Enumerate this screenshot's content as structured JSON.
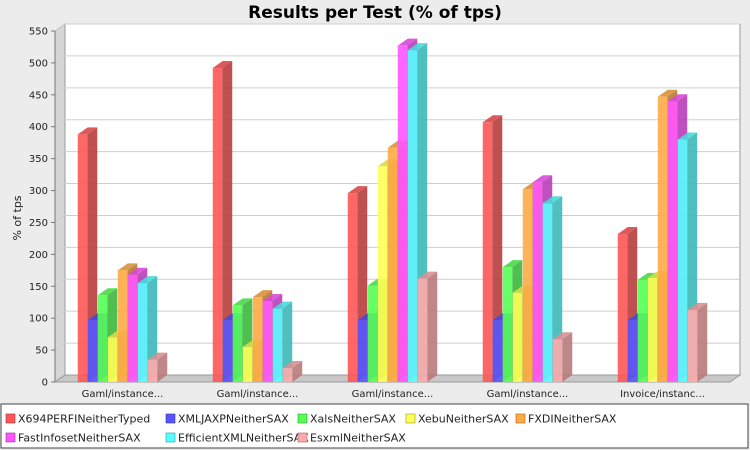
{
  "chart_data": {
    "type": "bar",
    "title": "Results per Test (% of tps)",
    "ylabel": "% of tps",
    "xlabel": "",
    "ylim": [
      0,
      550
    ],
    "yticks": [
      0,
      50,
      100,
      150,
      200,
      250,
      300,
      350,
      400,
      450,
      500,
      550
    ],
    "grid": true,
    "legend_position": "bottom",
    "categories": [
      "Gaml/instance...",
      "Gaml/instance...",
      "Gaml/instance...",
      "Gaml/instance...",
      "Invoice/instanc..."
    ],
    "series": [
      {
        "name": "X694PERFINeitherTyped",
        "color": "#ff5555",
        "values": [
          388,
          492,
          296,
          407,
          232
        ]
      },
      {
        "name": "XMLJAXPNeitherSAX",
        "color": "#5555ff",
        "values": [
          97,
          97,
          97,
          97,
          97
        ]
      },
      {
        "name": "XalsNeitherSAX",
        "color": "#55ff55",
        "values": [
          136,
          120,
          151,
          180,
          160
        ]
      },
      {
        "name": "XebuNeitherSAX",
        "color": "#ffff55",
        "values": [
          70,
          55,
          338,
          140,
          163
        ]
      },
      {
        "name": "FXDINeitherSAX",
        "color": "#ffaa44",
        "values": [
          175,
          133,
          367,
          302,
          447
        ]
      },
      {
        "name": "FastInfosetNeitherSAX",
        "color": "#ff55ff",
        "values": [
          168,
          127,
          527,
          313,
          440
        ]
      },
      {
        "name": "EfficientXMLNeitherSAX",
        "color": "#55ffff",
        "values": [
          155,
          115,
          520,
          280,
          380
        ]
      },
      {
        "name": "EsxmlNeitherSAX",
        "color": "#ffaaaa",
        "values": [
          35,
          22,
          162,
          67,
          113
        ]
      }
    ]
  }
}
